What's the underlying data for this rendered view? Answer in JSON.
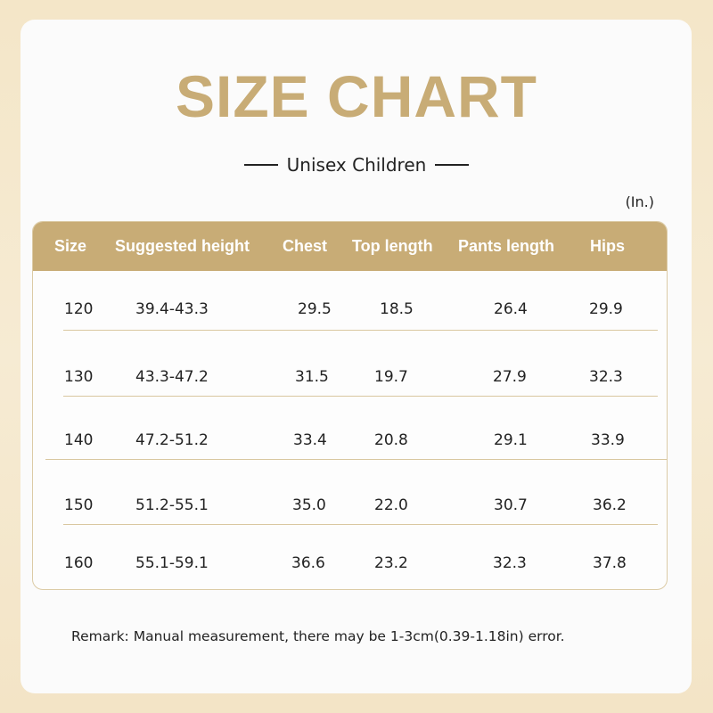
{
  "title": "SIZE CHART",
  "subtitle": "Unisex Children",
  "unit": "(In.)",
  "headers": [
    "Size",
    "Suggested height",
    "Chest",
    "Top length",
    "Pants length",
    "Hips"
  ],
  "rows": [
    [
      "120",
      "39.4-43.3",
      "29.5",
      "18.5",
      "26.4",
      "29.9"
    ],
    [
      "130",
      "43.3-47.2",
      "31.5",
      "19.7",
      "27.9",
      "32.3"
    ],
    [
      "140",
      "47.2-51.2",
      "33.4",
      "20.8",
      "29.1",
      "33.9"
    ],
    [
      "150",
      "51.2-55.1",
      "35.0",
      "22.0",
      "30.7",
      "36.2"
    ],
    [
      "160",
      "55.1-59.1",
      "36.6",
      "23.2",
      "32.3",
      "37.8"
    ]
  ],
  "remark": "Remark: Manual measurement, there may be 1-3cm(0.39-1.18in) error.",
  "colors": {
    "accent": "#c8ac76",
    "background": "#f4e6c8",
    "card": "#fbfbfb",
    "text": "#222222"
  }
}
